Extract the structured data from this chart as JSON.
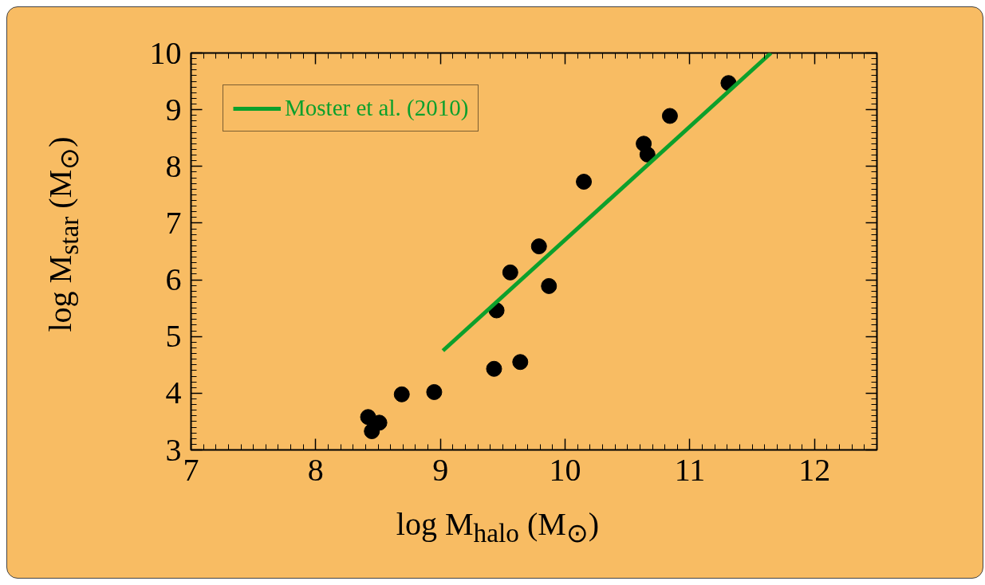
{
  "chart_data": {
    "type": "scatter",
    "xlabel": "log M$_{halo}$ (M$_{⊙}$)",
    "ylabel": "log M$_{star}$ (M$_{⊙}$)",
    "xlim": [
      7,
      12.5
    ],
    "ylim": [
      3,
      10
    ],
    "xticks": [
      7,
      8,
      9,
      10,
      11,
      12
    ],
    "yticks": [
      3,
      4,
      5,
      6,
      7,
      8,
      9,
      10
    ],
    "grid": false,
    "legend": "top left",
    "marker": "circle",
    "series": [
      {
        "color": "#000000",
        "x": [
          8.42,
          8.45,
          8.51,
          8.69,
          8.95,
          9.43,
          9.45,
          9.56,
          9.64,
          9.79,
          9.87,
          10.15,
          10.63,
          10.66,
          10.84,
          11.31
        ],
        "values": [
          3.58,
          3.33,
          3.48,
          3.98,
          4.02,
          4.43,
          5.46,
          6.13,
          4.55,
          6.59,
          5.89,
          7.73,
          8.4,
          8.21,
          8.89,
          9.47
        ]
      },
      {
        "type": "line",
        "name": "Moster et al. (2010)",
        "color": "#0ca02c",
        "line_style": "solid",
        "marker": "none",
        "x": [
          9.02,
          11.65
        ],
        "values": [
          4.75,
          10.0
        ]
      }
    ]
  }
}
